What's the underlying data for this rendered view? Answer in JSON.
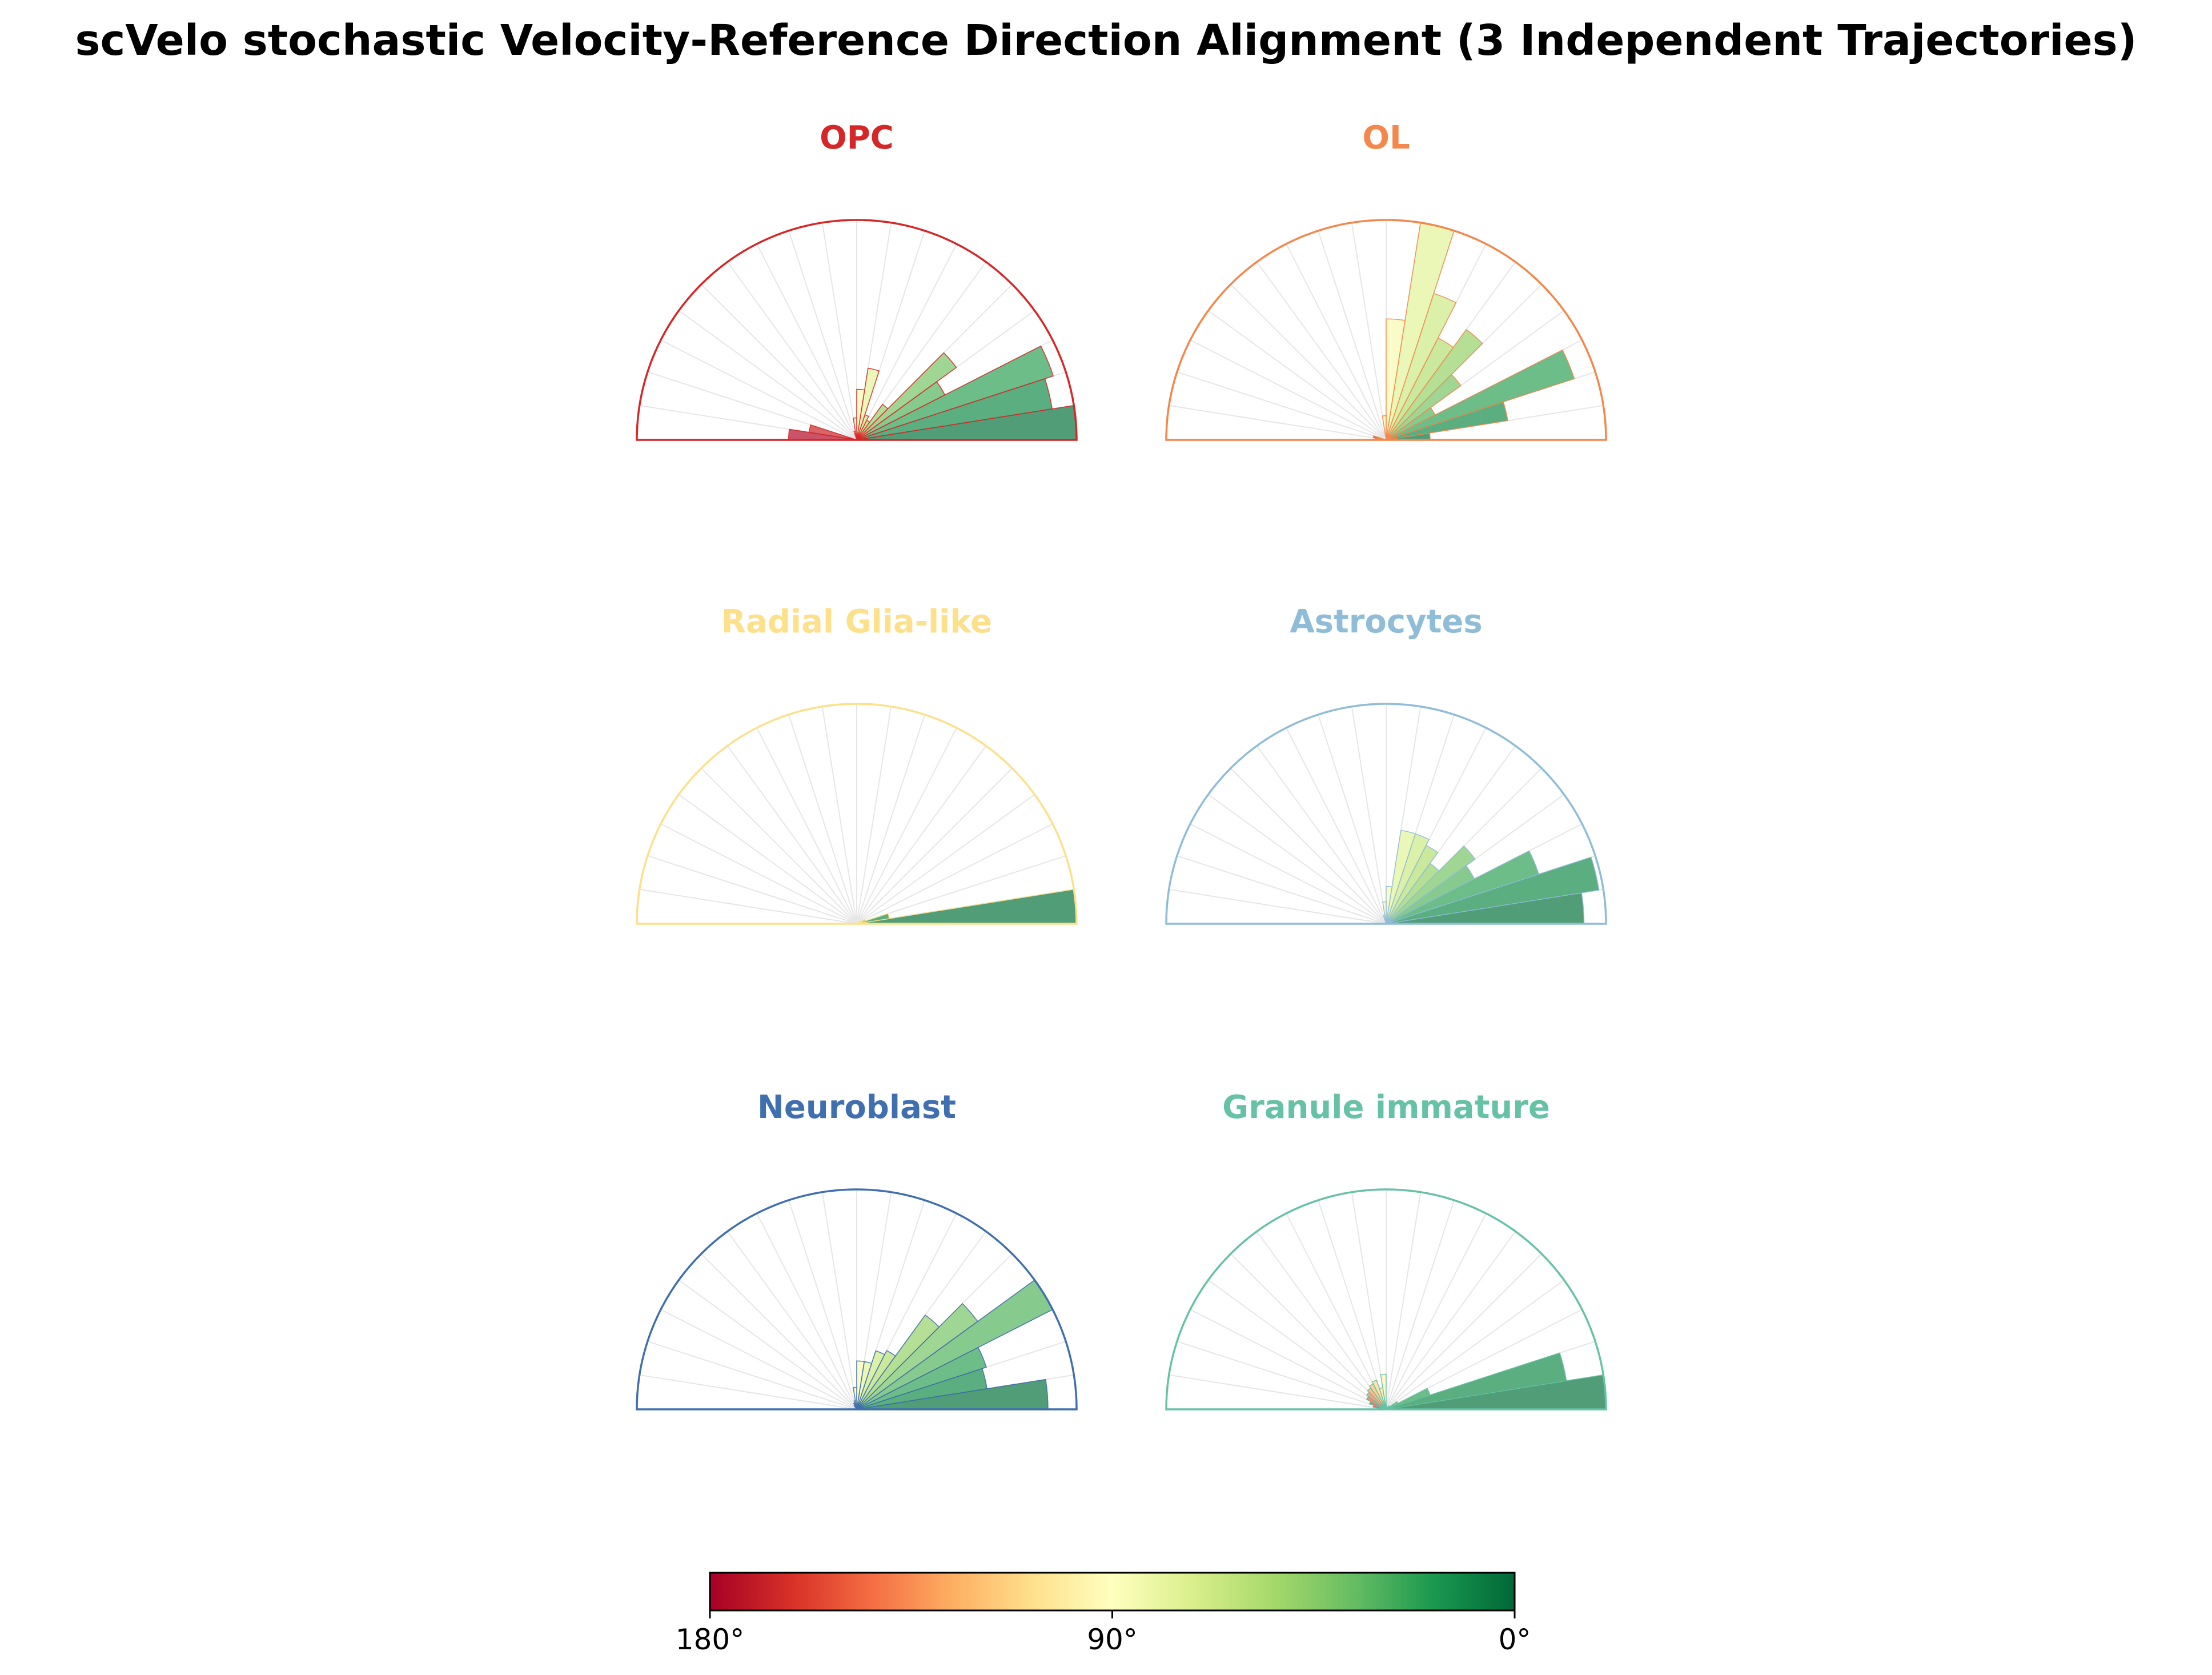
{
  "chart_data": {
    "type": "polar-histogram",
    "title": "scVelo stochastic Velocity-Reference Direction Alignment (3 Independent Trajectories)",
    "angle_unit": "degrees",
    "angle_range": [
      0,
      180
    ],
    "bin_width": 9,
    "bin_edges_note": "20 bins of 9 degrees from 0 to 180; values are relative counts (1.0 = outer half-circle)",
    "panels": [
      {
        "name": "OPC",
        "color": "#d62728",
        "values": [
          1.0,
          0.9,
          0.94,
          0.45,
          0.56,
          0.2,
          0.1,
          0.12,
          0.33,
          0.23,
          0.1,
          0.04,
          0,
          0,
          0,
          0,
          0,
          0,
          0.22,
          0.31
        ]
      },
      {
        "name": "OL",
        "color": "#f4874b",
        "values": [
          0.2,
          0.56,
          0.9,
          0.25,
          0.42,
          0.62,
          0.52,
          0.7,
          1.0,
          0.55,
          0.11,
          0,
          0,
          0,
          0,
          0,
          0,
          0,
          0.06,
          0.05
        ]
      },
      {
        "name": "Radial Glia-like",
        "color": "#fde08a",
        "values": [
          1.0,
          0.15,
          0.04,
          0.02,
          0,
          0,
          0,
          0,
          0,
          0,
          0,
          0,
          0,
          0,
          0,
          0,
          0,
          0,
          0,
          0
        ]
      },
      {
        "name": "Astrocytes",
        "color": "#8fbdd8",
        "values": [
          0.9,
          0.98,
          0.73,
          0.45,
          0.5,
          0.34,
          0.4,
          0.43,
          0.43,
          0.17,
          0.1,
          0.04,
          0,
          0,
          0,
          0,
          0,
          0,
          0,
          0
        ]
      },
      {
        "name": "Neuroblast",
        "color": "#3f6fae",
        "values": [
          0.87,
          0.6,
          0.62,
          1.0,
          0.68,
          0.53,
          0.3,
          0.28,
          0.22,
          0.22,
          0.1,
          0.04,
          0.03,
          0.02,
          0,
          0,
          0,
          0,
          0,
          0
        ]
      },
      {
        "name": "Granule immature",
        "color": "#66c2a5",
        "values": [
          1.0,
          0.83,
          0.21,
          0.06,
          0.02,
          0.02,
          0.01,
          0,
          0,
          0.02,
          0.16,
          0.1,
          0.14,
          0.13,
          0.12,
          0.11,
          0.1,
          0.08,
          0.06,
          0.04
        ]
      }
    ],
    "colorbar": {
      "colormap": "RdYlGn",
      "ticks": [
        "180°",
        "90°",
        "0°"
      ],
      "stops": [
        "#a50026",
        "#d73027",
        "#f46d43",
        "#fdae61",
        "#fee08b",
        "#ffffbf",
        "#d9ef8b",
        "#a6d96a",
        "#66bd63",
        "#1a9850",
        "#006837"
      ]
    }
  }
}
